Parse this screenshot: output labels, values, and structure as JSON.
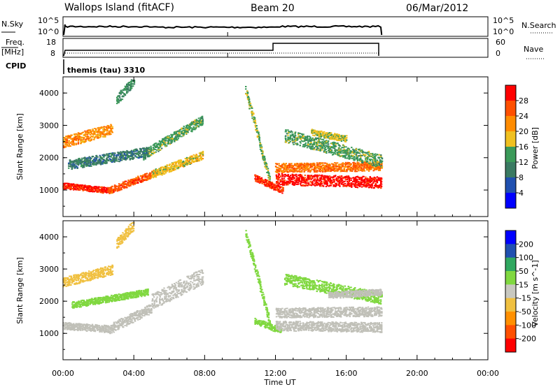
{
  "header": {
    "station": "Wallops Island (fitACF)",
    "beam": "Beam 20",
    "date": "06/Mar/2012"
  },
  "top_panels": {
    "nsky_label": "N.Sky",
    "nsky_ticks": [
      "10^5",
      "10^0"
    ],
    "nsky_right_ticks": [
      "10^5",
      "10^0"
    ],
    "nsearch_label": "N.Search",
    "freq_label": "Freq.",
    "freq_unit": "[MHz]",
    "freq_ticks": [
      "18",
      "8"
    ],
    "nave_ticks": [
      "60",
      "0"
    ],
    "nave_label": "Nave",
    "cpid_label": "CPID",
    "cpid_value": "themis (tau) 3310"
  },
  "colors": {
    "power_scale": [
      "#0000ff",
      "#2050b0",
      "#3a7a62",
      "#3b9a59",
      "#f0c020",
      "#ff8c00",
      "#ff5000",
      "#ff0000"
    ],
    "velocity_scale": [
      "#ff0000",
      "#ff5000",
      "#ff9000",
      "#f0c040",
      "#c8c8c0",
      "#80d840",
      "#30a860",
      "#2050b0",
      "#0000ff"
    ],
    "ground_scatter": "#c0c0b8"
  },
  "chart_data": [
    {
      "type": "heatmap",
      "name": "power-panel",
      "xlabel": "Time UT",
      "ylabel": "Slant Range [km]",
      "colorbar_label": "Power [dB]",
      "colorbar_ticks": [
        "28",
        "24",
        "20",
        "16",
        "12",
        "8",
        "4"
      ],
      "colorbar_range": [
        0,
        32
      ],
      "x_range_hours": [
        0,
        24
      ],
      "y_range_km": [
        180,
        4500
      ],
      "yticks": [
        "1000",
        "2000",
        "3000",
        "4000"
      ],
      "xticks": [
        "00:00",
        "04:00",
        "08:00",
        "12:00",
        "16:00",
        "20:00",
        "00:00"
      ],
      "bands": [
        {
          "t0": 0.0,
          "t1": 2.6,
          "r0": 1150,
          "r1": 1000,
          "w": 180,
          "v": 29
        },
        {
          "t0": 2.6,
          "t1": 5.0,
          "r0": 1000,
          "r1": 1500,
          "w": 220,
          "v": 26
        },
        {
          "t0": 5.0,
          "t1": 7.9,
          "r0": 1500,
          "r1": 2100,
          "w": 250,
          "v": 18
        },
        {
          "t0": 0.0,
          "t1": 2.8,
          "r0": 2500,
          "r1": 2900,
          "w": 350,
          "v": 22
        },
        {
          "t0": 4.5,
          "t1": 7.9,
          "r0": 2100,
          "r1": 3200,
          "w": 300,
          "v": 14
        },
        {
          "t0": 0.3,
          "t1": 4.8,
          "r0": 1800,
          "r1": 2200,
          "w": 300,
          "v": 10
        },
        {
          "t0": 3.0,
          "t1": 4.0,
          "r0": 3800,
          "r1": 4400,
          "w": 300,
          "v": 12
        },
        {
          "t0": 10.3,
          "t1": 11.7,
          "r0": 4100,
          "r1": 1200,
          "w": 250,
          "v": 15
        },
        {
          "t0": 10.8,
          "t1": 12.4,
          "r0": 1400,
          "r1": 1000,
          "w": 200,
          "v": 28
        },
        {
          "t0": 12.0,
          "t1": 18.0,
          "r0": 1350,
          "r1": 1250,
          "w": 350,
          "v": 30
        },
        {
          "t0": 12.0,
          "t1": 18.0,
          "r0": 1700,
          "r1": 1750,
          "w": 280,
          "v": 24
        },
        {
          "t0": 12.5,
          "t1": 18.0,
          "r0": 2700,
          "r1": 1900,
          "w": 400,
          "v": 14
        },
        {
          "t0": 14.0,
          "t1": 16.0,
          "r0": 2800,
          "r1": 2600,
          "w": 200,
          "v": 17
        }
      ]
    },
    {
      "type": "heatmap",
      "name": "velocity-panel",
      "xlabel": "Time UT",
      "ylabel": "Slant Range [km]",
      "colorbar_label": "Velocity [m s^-1]",
      "colorbar_ticks": [
        "200",
        "100",
        "50",
        "15",
        "-15",
        "-50",
        "-100",
        "-200"
      ],
      "x_range_hours": [
        0,
        24
      ],
      "y_range_km": [
        180,
        4500
      ],
      "yticks": [
        "1000",
        "2000",
        "3000",
        "4000"
      ],
      "xticks": [
        "00:00",
        "04:00",
        "08:00",
        "12:00",
        "16:00",
        "20:00",
        "00:00"
      ],
      "bands": [
        {
          "t0": 0.0,
          "t1": 2.6,
          "r0": 1250,
          "r1": 1150,
          "w": 220,
          "v": 0
        },
        {
          "t0": 2.6,
          "t1": 5.0,
          "r0": 1150,
          "r1": 1800,
          "w": 300,
          "v": 0
        },
        {
          "t0": 5.0,
          "t1": 7.9,
          "r0": 2000,
          "r1": 2800,
          "w": 500,
          "v": 0
        },
        {
          "t0": 0.0,
          "t1": 2.8,
          "r0": 2600,
          "r1": 3000,
          "w": 300,
          "v": -30
        },
        {
          "t0": 0.5,
          "t1": 4.8,
          "r0": 1900,
          "r1": 2300,
          "w": 200,
          "v": 30
        },
        {
          "t0": 3.0,
          "t1": 4.0,
          "r0": 3800,
          "r1": 4400,
          "w": 300,
          "v": -40
        },
        {
          "t0": 10.3,
          "t1": 11.7,
          "r0": 4100,
          "r1": 1300,
          "w": 250,
          "v": 40
        },
        {
          "t0": 10.8,
          "t1": 12.3,
          "r0": 1400,
          "r1": 1100,
          "w": 200,
          "v": 30
        },
        {
          "t0": 12.0,
          "t1": 18.0,
          "r0": 1250,
          "r1": 1200,
          "w": 300,
          "v": 0
        },
        {
          "t0": 12.0,
          "t1": 18.0,
          "r0": 1650,
          "r1": 1700,
          "w": 300,
          "v": 0
        },
        {
          "t0": 12.5,
          "t1": 18.0,
          "r0": 2700,
          "r1": 2100,
          "w": 350,
          "v": 35
        },
        {
          "t0": 15.0,
          "t1": 18.0,
          "r0": 2200,
          "r1": 2300,
          "w": 200,
          "v": 0
        }
      ]
    }
  ]
}
